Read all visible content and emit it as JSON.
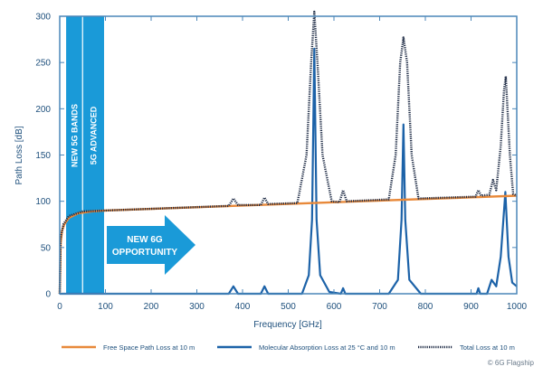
{
  "chart_data": {
    "type": "line",
    "xlabel": "Frequency [GHz]",
    "ylabel": "Path Loss [dB]",
    "xlim": [
      0,
      1000
    ],
    "ylim": [
      0,
      300
    ],
    "x_ticks": [
      "0",
      "100",
      "200",
      "300",
      "400",
      "500",
      "600",
      "700",
      "800",
      "900",
      "1000"
    ],
    "y_ticks": [
      "0",
      "50",
      "100",
      "150",
      "200",
      "250",
      "300"
    ],
    "grid": false,
    "legend_position": "bottom",
    "series": [
      {
        "name": "Free Space Path Loss at 10 m",
        "color": "#e8893a",
        "style": "solid",
        "x": [
          0,
          2,
          5,
          10,
          20,
          40,
          70,
          100,
          1000
        ],
        "y": [
          0,
          55,
          68,
          75,
          82,
          87,
          89,
          90,
          106
        ]
      },
      {
        "name": "Molecular Absorption Loss at 25 °C and 10 m",
        "color": "#1c62a8",
        "style": "solid",
        "x": [
          0,
          370,
          380,
          390,
          440,
          448,
          456,
          530,
          545,
          552,
          557,
          562,
          570,
          590,
          615,
          620,
          625,
          720,
          740,
          748,
          752,
          756,
          765,
          790,
          912,
          916,
          920,
          935,
          945,
          955,
          965,
          975,
          982,
          990,
          1000
        ],
        "y": [
          0,
          0,
          8,
          0,
          0,
          8,
          0,
          0,
          20,
          80,
          265,
          80,
          20,
          2,
          0,
          6,
          0,
          0,
          15,
          80,
          183,
          80,
          15,
          0,
          0,
          6,
          0,
          0,
          15,
          8,
          40,
          110,
          40,
          12,
          8
        ]
      },
      {
        "name": "Total Loss at 10 m",
        "color": "#1d2a44",
        "style": "dotted",
        "x": [
          0,
          2,
          8,
          20,
          50,
          100,
          370,
          380,
          390,
          440,
          448,
          456,
          520,
          540,
          550,
          557,
          564,
          575,
          595,
          612,
          620,
          628,
          720,
          735,
          745,
          752,
          760,
          770,
          785,
          910,
          916,
          922,
          940,
          948,
          955,
          965,
          972,
          976,
          985,
          992,
          1000
        ],
        "y": [
          0,
          60,
          75,
          84,
          89,
          90,
          95,
          103,
          96,
          96,
          104,
          97,
          98,
          150,
          250,
          305,
          250,
          150,
          100,
          99,
          112,
          100,
          102,
          150,
          250,
          277,
          250,
          150,
          103,
          105,
          112,
          106,
          107,
          123,
          112,
          160,
          220,
          235,
          150,
          108,
          106
        ]
      }
    ],
    "annotations": {
      "band_color": "#1a9ad8",
      "bands": [
        {
          "label": "NEW 5G BANDS",
          "range": [
            14,
            50
          ]
        },
        {
          "label": "5G ADVANCED",
          "range": [
            50,
            97
          ]
        }
      ],
      "arrow_label_line1": "NEW 6G",
      "arrow_label_line2": "OPPORTUNITY"
    },
    "copyright": "© 6G Flagship"
  }
}
